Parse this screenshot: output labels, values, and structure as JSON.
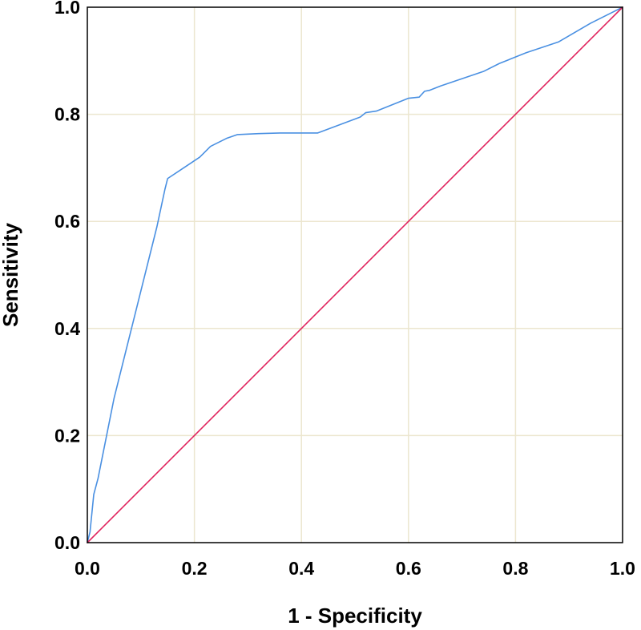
{
  "chart_data": {
    "type": "line",
    "title": "",
    "xlabel": "1 - Specificity",
    "ylabel": "Sensitivity",
    "xlim": [
      0,
      1
    ],
    "ylim": [
      0,
      1
    ],
    "grid": true,
    "x_ticks": [
      {
        "value": 0.0,
        "label": "0.0"
      },
      {
        "value": 0.2,
        "label": "0.2"
      },
      {
        "value": 0.4,
        "label": "0.4"
      },
      {
        "value": 0.6,
        "label": "0.6"
      },
      {
        "value": 0.8,
        "label": "0.8"
      },
      {
        "value": 1.0,
        "label": "1.0"
      }
    ],
    "y_ticks": [
      {
        "value": 0.0,
        "label": "0.0"
      },
      {
        "value": 0.2,
        "label": "0.2"
      },
      {
        "value": 0.4,
        "label": "0.4"
      },
      {
        "value": 0.6,
        "label": "0.6"
      },
      {
        "value": 0.8,
        "label": "0.8"
      },
      {
        "value": 1.0,
        "label": "1.0"
      }
    ],
    "series": [
      {
        "color": "#4a90e2",
        "points": [
          [
            0.0,
            0.0
          ],
          [
            0.005,
            0.02
          ],
          [
            0.012,
            0.09
          ],
          [
            0.02,
            0.12
          ],
          [
            0.03,
            0.17
          ],
          [
            0.05,
            0.27
          ],
          [
            0.07,
            0.35
          ],
          [
            0.09,
            0.43
          ],
          [
            0.11,
            0.51
          ],
          [
            0.13,
            0.59
          ],
          [
            0.145,
            0.66
          ],
          [
            0.15,
            0.68
          ],
          [
            0.18,
            0.7
          ],
          [
            0.21,
            0.72
          ],
          [
            0.23,
            0.74
          ],
          [
            0.24,
            0.745
          ],
          [
            0.26,
            0.755
          ],
          [
            0.28,
            0.762
          ],
          [
            0.32,
            0.764
          ],
          [
            0.36,
            0.765
          ],
          [
            0.43,
            0.765
          ],
          [
            0.47,
            0.78
          ],
          [
            0.51,
            0.795
          ],
          [
            0.52,
            0.803
          ],
          [
            0.54,
            0.806
          ],
          [
            0.6,
            0.83
          ],
          [
            0.62,
            0.832
          ],
          [
            0.63,
            0.843
          ],
          [
            0.64,
            0.845
          ],
          [
            0.66,
            0.853
          ],
          [
            0.74,
            0.88
          ],
          [
            0.77,
            0.895
          ],
          [
            0.79,
            0.903
          ],
          [
            0.82,
            0.915
          ],
          [
            0.88,
            0.935
          ],
          [
            0.94,
            0.97
          ],
          [
            1.0,
            1.0
          ]
        ]
      },
      {
        "color": "#e0245e",
        "points": [
          [
            0.0,
            0.0
          ],
          [
            1.0,
            1.0
          ]
        ]
      }
    ]
  }
}
